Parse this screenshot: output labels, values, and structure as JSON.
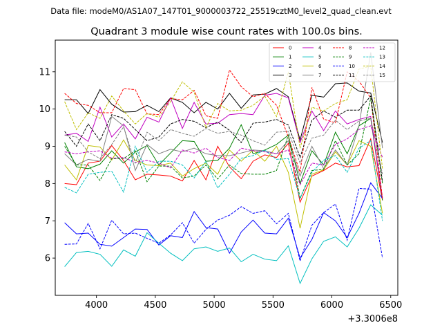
{
  "header": {
    "suptitle": "Data file: modeM0/AS1A07_147T01_9000003722_25519cztM0_level2_quad_clean.evt"
  },
  "chart_data": {
    "type": "line",
    "title": "Quadrant 3 module wise count rates with 100.0s bins.",
    "xlabel": "",
    "ylabel": "",
    "x_offset_label": "+3.3006e8",
    "xlim": [
      3650,
      6560
    ],
    "ylim": [
      5.0,
      11.85
    ],
    "xticks": [
      4000,
      4500,
      5000,
      5500,
      6000,
      6500
    ],
    "yticks": [
      6,
      7,
      8,
      9,
      10,
      11
    ],
    "grid": false,
    "legend_placement": "top-right",
    "x": [
      3730,
      3830,
      3930,
      4030,
      4130,
      4230,
      4330,
      4430,
      4530,
      4630,
      4730,
      4830,
      4930,
      5030,
      5130,
      5230,
      5330,
      5430,
      5530,
      5630,
      5730,
      5830,
      5930,
      6030,
      6130,
      6230,
      6330,
      6430
    ],
    "series": [
      {
        "name": "0",
        "color": "#ff0000",
        "dash": "solid",
        "values": [
          8.0,
          7.97,
          8.55,
          8.6,
          9.02,
          8.62,
          8.1,
          8.25,
          8.23,
          8.2,
          8.07,
          8.62,
          8.1,
          9.0,
          8.45,
          8.13,
          8.6,
          8.77,
          8.7,
          9.08,
          7.5,
          8.2,
          8.35,
          8.55,
          8.45,
          8.48,
          9.2,
          7.55
        ]
      },
      {
        "name": "1",
        "color": "#008000",
        "dash": "solid",
        "values": [
          9.1,
          8.45,
          8.4,
          8.52,
          8.88,
          8.55,
          8.85,
          9.02,
          8.5,
          8.82,
          9.15,
          9.13,
          8.6,
          8.62,
          8.95,
          9.58,
          8.8,
          8.9,
          9.05,
          9.3,
          8.0,
          8.88,
          8.5,
          9.38,
          8.8,
          9.55,
          9.75,
          7.55
        ]
      },
      {
        "name": "2",
        "color": "#0000ff",
        "dash": "solid",
        "values": [
          6.95,
          6.65,
          6.67,
          6.37,
          6.32,
          6.55,
          6.78,
          6.77,
          6.35,
          6.6,
          6.55,
          7.25,
          6.82,
          6.78,
          6.13,
          6.7,
          7.02,
          6.67,
          6.65,
          7.07,
          6.0,
          6.5,
          7.22,
          7.0,
          6.55,
          7.2,
          8.02,
          7.6
        ]
      },
      {
        "name": "3",
        "color": "#000000",
        "dash": "solid",
        "values": [
          10.25,
          10.25,
          9.88,
          10.52,
          10.13,
          9.92,
          9.93,
          10.1,
          9.93,
          10.3,
          10.18,
          9.9,
          10.18,
          10.0,
          10.42,
          10.02,
          10.38,
          10.4,
          10.55,
          10.33,
          9.17,
          10.37,
          10.32,
          10.68,
          10.7,
          10.48,
          10.43,
          9.1
        ]
      },
      {
        "name": "4",
        "color": "#c000c0",
        "dash": "solid",
        "values": [
          9.3,
          9.35,
          9.13,
          10.05,
          9.25,
          9.6,
          9.2,
          9.78,
          9.65,
          10.3,
          9.48,
          10.18,
          9.6,
          9.62,
          9.85,
          9.88,
          9.85,
          10.37,
          10.42,
          10.3,
          9.1,
          9.95,
          9.42,
          9.95,
          9.6,
          9.72,
          9.8,
          7.6
        ]
      },
      {
        "name": "5",
        "color": "#00bfbf",
        "dash": "solid",
        "values": [
          5.77,
          6.15,
          6.18,
          6.1,
          5.78,
          6.22,
          6.05,
          6.68,
          6.4,
          6.13,
          5.93,
          6.25,
          6.3,
          6.18,
          6.27,
          5.9,
          6.1,
          5.97,
          5.93,
          6.33,
          5.32,
          5.98,
          6.45,
          6.57,
          6.3,
          6.8,
          7.43,
          7.15
        ]
      },
      {
        "name": "6",
        "color": "#bfbf00",
        "dash": "solid",
        "values": [
          8.5,
          8.1,
          9.02,
          8.98,
          8.63,
          9.17,
          8.62,
          8.5,
          8.48,
          8.55,
          8.2,
          8.4,
          8.55,
          8.25,
          8.9,
          8.6,
          8.9,
          8.6,
          9.0,
          8.3,
          6.8,
          8.25,
          8.37,
          8.85,
          8.5,
          9.15,
          9.0,
          7.2
        ]
      },
      {
        "name": "7",
        "color": "#808080",
        "dash": "solid",
        "values": [
          8.8,
          8.5,
          8.65,
          8.6,
          9.8,
          9.55,
          8.35,
          9.05,
          8.8,
          8.92,
          8.85,
          8.95,
          8.8,
          8.75,
          8.75,
          8.82,
          8.9,
          8.88,
          8.8,
          9.15,
          8.2,
          9.0,
          8.4,
          8.9,
          8.5,
          9.55,
          11.52,
          8.95
        ]
      },
      {
        "name": "8",
        "color": "#ff0000",
        "dash": "dashed",
        "values": [
          10.42,
          10.15,
          10.1,
          9.9,
          9.9,
          10.55,
          10.52,
          9.87,
          9.85,
          10.28,
          10.25,
          10.5,
          9.82,
          9.75,
          11.05,
          10.6,
          10.33,
          10.42,
          10.1,
          9.25,
          8.3,
          10.58,
          9.73,
          9.63,
          11.0,
          10.75,
          10.3,
          7.6
        ]
      },
      {
        "name": "9",
        "color": "#008000",
        "dash": "dashed",
        "values": [
          9.0,
          8.5,
          8.5,
          8.08,
          8.67,
          8.67,
          8.88,
          8.05,
          8.47,
          8.47,
          8.15,
          8.2,
          8.5,
          8.12,
          8.5,
          8.27,
          8.25,
          8.25,
          8.35,
          9.3,
          7.6,
          8.35,
          8.38,
          9.15,
          8.5,
          8.8,
          10.3,
          8.0
        ]
      },
      {
        "name": "10",
        "color": "#0000ff",
        "dash": "dashed",
        "values": [
          6.37,
          6.38,
          6.93,
          6.25,
          7.02,
          6.65,
          6.67,
          6.53,
          6.4,
          6.62,
          6.95,
          6.4,
          6.77,
          7.02,
          7.15,
          7.38,
          7.2,
          7.27,
          6.92,
          7.2,
          5.92,
          6.88,
          7.22,
          7.45,
          6.48,
          7.87,
          7.85,
          6.0
        ]
      },
      {
        "name": "11",
        "color": "#000000",
        "dash": "dashed",
        "values": [
          9.4,
          9.0,
          9.6,
          9.15,
          9.85,
          9.75,
          9.45,
          9.15,
          9.25,
          9.6,
          9.72,
          9.67,
          9.5,
          9.65,
          9.43,
          9.1,
          9.62,
          9.65,
          9.72,
          9.57,
          8.7,
          9.7,
          9.95,
          9.78,
          9.97,
          9.97,
          10.35,
          8.05
        ]
      },
      {
        "name": "12",
        "color": "#c000c0",
        "dash": "dashed",
        "values": [
          8.85,
          8.8,
          8.85,
          8.88,
          8.68,
          8.7,
          8.57,
          8.62,
          8.55,
          8.42,
          8.9,
          8.82,
          8.95,
          8.7,
          8.62,
          8.95,
          8.88,
          8.85,
          8.8,
          8.9,
          7.97,
          8.55,
          8.5,
          9.05,
          9.2,
          9.45,
          9.55,
          8.7
        ]
      },
      {
        "name": "13",
        "color": "#00bfbf",
        "dash": "dashed",
        "values": [
          7.9,
          7.75,
          8.25,
          8.3,
          8.33,
          7.77,
          9.0,
          8.3,
          8.6,
          8.6,
          8.5,
          8.15,
          8.6,
          7.88,
          8.25,
          8.68,
          8.75,
          8.9,
          8.65,
          8.67,
          7.6,
          8.3,
          8.63,
          8.75,
          8.3,
          8.95,
          9.15,
          7.0
        ]
      },
      {
        "name": "14",
        "color": "#bfbf00",
        "dash": "dashed",
        "values": [
          10.2,
          9.45,
          9.9,
          9.75,
          10.35,
          9.95,
          9.6,
          9.88,
          9.78,
          10.2,
          10.73,
          10.45,
          9.5,
          10.15,
          9.95,
          9.97,
          10.1,
          10.35,
          9.8,
          11.0,
          8.95,
          10.05,
          9.95,
          10.15,
          10.25,
          11.07,
          11.15,
          8.4
        ]
      },
      {
        "name": "15",
        "color": "#808080",
        "dash": "dashed",
        "values": [
          9.3,
          9.25,
          8.85,
          8.67,
          9.05,
          9.52,
          8.55,
          9.38,
          9.15,
          9.45,
          9.35,
          9.27,
          9.48,
          9.35,
          9.4,
          9.3,
          9.15,
          9.03,
          9.38,
          9.4,
          8.55,
          9.22,
          9.3,
          9.7,
          9.45,
          9.68,
          9.75,
          8.25
        ]
      }
    ]
  }
}
